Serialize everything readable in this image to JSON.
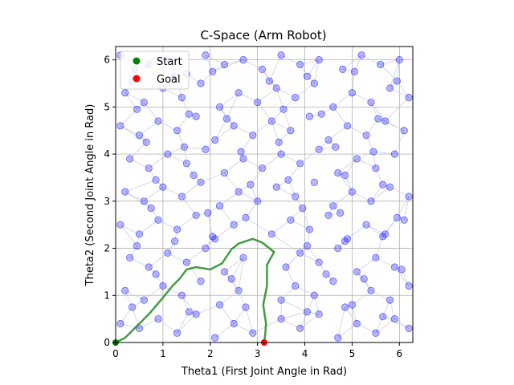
{
  "chart_data": {
    "type": "scatter",
    "title": "C-Space (Arm Robot)",
    "xlabel": "Theta1 (First Joint Angle in Rad)",
    "ylabel": "Theta2 (Second Joint Angle in Rad)",
    "xlim": [
      0,
      6.2832
    ],
    "ylim": [
      0,
      6.2832
    ],
    "xticks": [
      "0",
      "1",
      "2",
      "3",
      "4",
      "5",
      "6"
    ],
    "yticks": [
      "0",
      "1",
      "2",
      "3",
      "4",
      "5",
      "6"
    ],
    "grid": true,
    "legend_position": "top-left",
    "legend": [
      {
        "label": "Start",
        "color": "#008000"
      },
      {
        "label": "Goal",
        "color": "#ff0000"
      }
    ],
    "colors": {
      "samples": "#0000ff",
      "path": "#228b22",
      "edges": "#c8c8dc"
    },
    "start": [
      0.0,
      0.0
    ],
    "goal": [
      3.14,
      0.0
    ],
    "path": [
      [
        0.0,
        0.0
      ],
      [
        0.2,
        0.1
      ],
      [
        0.7,
        0.6
      ],
      [
        1.0,
        0.95
      ],
      [
        1.2,
        1.2
      ],
      [
        1.35,
        1.35
      ],
      [
        1.5,
        1.55
      ],
      [
        1.7,
        1.6
      ],
      [
        2.0,
        1.55
      ],
      [
        2.25,
        1.68
      ],
      [
        2.45,
        1.98
      ],
      [
        2.6,
        2.1
      ],
      [
        2.9,
        2.2
      ],
      [
        3.1,
        2.12
      ],
      [
        3.35,
        1.92
      ],
      [
        3.2,
        1.65
      ],
      [
        3.2,
        1.2
      ],
      [
        3.12,
        0.8
      ],
      [
        3.18,
        0.4
      ],
      [
        3.16,
        0.15
      ],
      [
        3.14,
        0.0
      ]
    ],
    "samples": [
      [
        0.1,
        6.1
      ],
      [
        0.4,
        5.8
      ],
      [
        0.7,
        5.9
      ],
      [
        1.1,
        6.0
      ],
      [
        1.5,
        5.7
      ],
      [
        1.9,
        6.1
      ],
      [
        2.3,
        5.9
      ],
      [
        2.7,
        6.0
      ],
      [
        3.1,
        5.8
      ],
      [
        3.5,
        6.1
      ],
      [
        3.9,
        5.9
      ],
      [
        4.3,
        6.0
      ],
      [
        4.8,
        5.8
      ],
      [
        5.2,
        6.1
      ],
      [
        5.6,
        5.9
      ],
      [
        6.0,
        6.0
      ],
      [
        0.2,
        5.3
      ],
      [
        0.6,
        5.1
      ],
      [
        1.0,
        5.4
      ],
      [
        1.4,
        5.2
      ],
      [
        1.8,
        5.5
      ],
      [
        2.2,
        5.0
      ],
      [
        2.6,
        5.3
      ],
      [
        3.0,
        5.1
      ],
      [
        3.4,
        5.4
      ],
      [
        3.8,
        5.2
      ],
      [
        4.2,
        5.5
      ],
      [
        4.6,
        5.0
      ],
      [
        5.0,
        5.3
      ],
      [
        5.4,
        5.1
      ],
      [
        5.8,
        5.4
      ],
      [
        6.2,
        5.2
      ],
      [
        0.1,
        4.6
      ],
      [
        0.5,
        4.4
      ],
      [
        0.9,
        4.7
      ],
      [
        1.3,
        4.5
      ],
      [
        1.7,
        4.8
      ],
      [
        2.1,
        4.3
      ],
      [
        2.5,
        4.6
      ],
      [
        2.9,
        4.4
      ],
      [
        3.3,
        4.7
      ],
      [
        3.7,
        4.5
      ],
      [
        4.1,
        4.8
      ],
      [
        4.5,
        4.3
      ],
      [
        4.9,
        4.6
      ],
      [
        5.3,
        4.4
      ],
      [
        5.7,
        4.7
      ],
      [
        6.1,
        4.5
      ],
      [
        0.3,
        3.9
      ],
      [
        0.7,
        3.7
      ],
      [
        1.1,
        4.0
      ],
      [
        1.5,
        3.8
      ],
      [
        1.9,
        4.1
      ],
      [
        2.3,
        3.6
      ],
      [
        2.7,
        3.9
      ],
      [
        3.1,
        3.7
      ],
      [
        3.5,
        4.0
      ],
      [
        3.9,
        3.8
      ],
      [
        4.3,
        4.1
      ],
      [
        4.7,
        3.6
      ],
      [
        5.1,
        3.9
      ],
      [
        5.5,
        3.7
      ],
      [
        5.9,
        4.0
      ],
      [
        0.2,
        3.2
      ],
      [
        0.6,
        3.0
      ],
      [
        1.0,
        3.3
      ],
      [
        1.4,
        3.1
      ],
      [
        1.8,
        3.4
      ],
      [
        2.2,
        2.9
      ],
      [
        2.6,
        3.2
      ],
      [
        3.0,
        3.0
      ],
      [
        3.4,
        3.3
      ],
      [
        3.8,
        3.1
      ],
      [
        4.2,
        3.4
      ],
      [
        4.6,
        2.9
      ],
      [
        5.0,
        3.2
      ],
      [
        5.4,
        3.0
      ],
      [
        5.8,
        3.3
      ],
      [
        6.2,
        3.1
      ],
      [
        0.1,
        2.5
      ],
      [
        0.5,
        2.3
      ],
      [
        0.9,
        2.6
      ],
      [
        1.3,
        2.4
      ],
      [
        1.7,
        2.7
      ],
      [
        2.1,
        2.2
      ],
      [
        2.5,
        2.5
      ],
      [
        3.3,
        2.3
      ],
      [
        3.7,
        2.6
      ],
      [
        4.1,
        2.4
      ],
      [
        4.5,
        2.7
      ],
      [
        4.9,
        2.2
      ],
      [
        5.3,
        2.5
      ],
      [
        5.7,
        2.3
      ],
      [
        6.1,
        2.6
      ],
      [
        0.3,
        1.8
      ],
      [
        0.7,
        1.6
      ],
      [
        1.1,
        1.9
      ],
      [
        1.5,
        1.7
      ],
      [
        1.9,
        2.0
      ],
      [
        2.3,
        1.5
      ],
      [
        2.7,
        1.8
      ],
      [
        3.6,
        1.6
      ],
      [
        3.9,
        1.9
      ],
      [
        4.3,
        1.7
      ],
      [
        4.7,
        2.0
      ],
      [
        5.1,
        1.5
      ],
      [
        5.5,
        1.8
      ],
      [
        5.9,
        1.6
      ],
      [
        0.2,
        1.1
      ],
      [
        0.6,
        0.9
      ],
      [
        1.0,
        1.2
      ],
      [
        1.4,
        1.0
      ],
      [
        1.8,
        1.3
      ],
      [
        2.2,
        0.8
      ],
      [
        2.6,
        1.1
      ],
      [
        3.5,
        0.9
      ],
      [
        3.8,
        1.2
      ],
      [
        4.2,
        1.0
      ],
      [
        4.6,
        1.3
      ],
      [
        5.0,
        0.8
      ],
      [
        5.4,
        1.1
      ],
      [
        5.8,
        0.9
      ],
      [
        6.2,
        1.2
      ],
      [
        0.1,
        0.4
      ],
      [
        0.5,
        0.3
      ],
      [
        0.9,
        0.5
      ],
      [
        1.3,
        0.2
      ],
      [
        1.7,
        0.6
      ],
      [
        2.1,
        0.1
      ],
      [
        2.5,
        0.4
      ],
      [
        2.9,
        0.2
      ],
      [
        3.5,
        0.5
      ],
      [
        3.9,
        0.3
      ],
      [
        4.3,
        0.6
      ],
      [
        4.7,
        0.1
      ],
      [
        5.1,
        0.4
      ],
      [
        5.5,
        0.2
      ],
      [
        5.9,
        0.5
      ],
      [
        6.2,
        0.3
      ],
      [
        0.35,
        5.55
      ],
      [
        1.25,
        5.65
      ],
      [
        2.05,
        5.75
      ],
      [
        3.25,
        5.55
      ],
      [
        4.05,
        5.65
      ],
      [
        5.05,
        5.75
      ],
      [
        5.95,
        5.55
      ],
      [
        0.45,
        4.95
      ],
      [
        1.55,
        4.85
      ],
      [
        2.35,
        4.75
      ],
      [
        3.55,
        4.95
      ],
      [
        4.35,
        4.85
      ],
      [
        5.55,
        4.75
      ],
      [
        0.65,
        4.25
      ],
      [
        1.45,
        4.15
      ],
      [
        2.65,
        4.05
      ],
      [
        3.45,
        4.25
      ],
      [
        4.65,
        4.15
      ],
      [
        5.45,
        4.05
      ],
      [
        0.85,
        3.45
      ],
      [
        1.65,
        3.55
      ],
      [
        2.85,
        3.35
      ],
      [
        3.65,
        3.45
      ],
      [
        4.85,
        3.55
      ],
      [
        5.65,
        3.35
      ],
      [
        0.75,
        2.85
      ],
      [
        1.95,
        2.75
      ],
      [
        2.75,
        2.65
      ],
      [
        3.95,
        2.85
      ],
      [
        4.75,
        2.75
      ],
      [
        5.95,
        2.65
      ],
      [
        0.45,
        2.05
      ],
      [
        1.25,
        2.15
      ],
      [
        2.05,
        2.25
      ],
      [
        4.05,
        2.05
      ],
      [
        4.85,
        2.15
      ],
      [
        5.65,
        2.25
      ],
      [
        0.85,
        1.45
      ],
      [
        2.45,
        1.35
      ],
      [
        4.45,
        1.45
      ],
      [
        5.25,
        1.35
      ],
      [
        6.05,
        1.55
      ],
      [
        0.35,
        0.75
      ],
      [
        1.55,
        0.65
      ],
      [
        2.75,
        0.75
      ],
      [
        4.05,
        0.65
      ],
      [
        4.85,
        0.75
      ],
      [
        5.65,
        0.55
      ]
    ]
  }
}
